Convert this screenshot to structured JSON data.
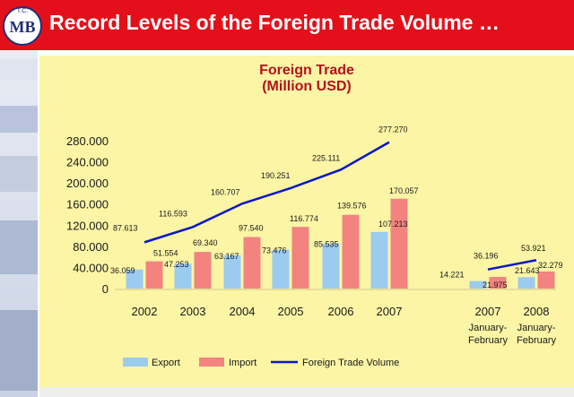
{
  "header": {
    "title": "Record Levels of the Foreign Trade Volume …",
    "logo_text": "T.C.",
    "logo_mark": "MB"
  },
  "colors": {
    "header_bg": "#e3101b",
    "panel_bg": "#fbf5a5",
    "export": "#9ccbf0",
    "import": "#f2837f",
    "volume": "#0a17c8",
    "title_red": "#b5121b"
  },
  "chart_data": {
    "type": "bar",
    "title_lines": [
      "Foreign Trade",
      "(Million USD)"
    ],
    "categories": [
      "2002",
      "2003",
      "2004",
      "2005",
      "2006",
      "2007",
      "2007",
      "2008"
    ],
    "category_sublabels": [
      "",
      "",
      "",
      "",
      "",
      "",
      "January-February",
      "January-February"
    ],
    "yticks": [
      "280.000",
      "240.000",
      "200.000",
      "160.000",
      "120.000",
      "80.000",
      "40.000",
      "0"
    ],
    "ylim": [
      0,
      280000
    ],
    "series": [
      {
        "name": "Export",
        "type": "bar",
        "values": [
          36059,
          47253,
          63167,
          73476,
          85535,
          107213,
          14221,
          21643
        ],
        "labels": [
          "36.059",
          "47.253",
          "63.167",
          "73.476",
          "85.535",
          "107.213",
          "14.221",
          "21.643"
        ]
      },
      {
        "name": "Import",
        "type": "bar",
        "values": [
          51554,
          69340,
          97540,
          116774,
          139576,
          170057,
          21975,
          32279
        ],
        "labels": [
          "51.554",
          "69.340",
          "97.540",
          "116.774",
          "139.576",
          "170.057",
          "21.975",
          "32.279"
        ]
      },
      {
        "name": "Foreign Trade Volume",
        "type": "line",
        "values": [
          87613,
          116593,
          160707,
          190251,
          225111,
          277270,
          36196,
          53921
        ],
        "labels": [
          "87.613",
          "116.593",
          "160.707",
          "190.251",
          "225.111",
          "277.270",
          "36.196",
          "53.921"
        ]
      }
    ],
    "legend_position": "bottom",
    "grid": false
  }
}
